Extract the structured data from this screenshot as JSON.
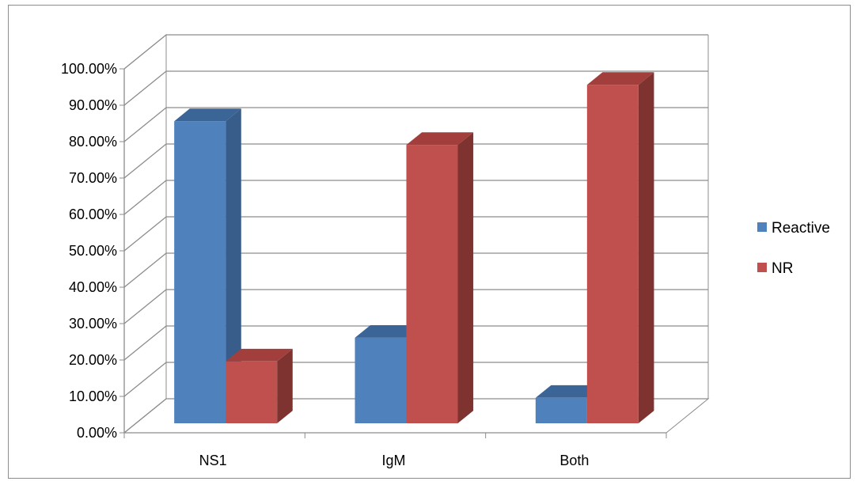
{
  "chart_data": {
    "type": "bar",
    "style": "3d-clustered-column",
    "categories": [
      "NS1",
      "IgM",
      "Both"
    ],
    "series": [
      {
        "name": "Reactive",
        "values": [
          83.0,
          23.5,
          7.0
        ],
        "color": "#4f81bd",
        "color_side": "#385d8a",
        "color_top": "#3b6497"
      },
      {
        "name": "NR",
        "values": [
          17.0,
          76.5,
          93.0
        ],
        "color": "#c0504d",
        "color_side": "#7f3331",
        "color_top": "#a23f3d"
      }
    ],
    "y_ticks": [
      "0.00%",
      "10.00%",
      "20.00%",
      "30.00%",
      "40.00%",
      "50.00%",
      "60.00%",
      "70.00%",
      "80.00%",
      "90.00%",
      "100.00%"
    ],
    "ylim": [
      0,
      100
    ],
    "title": "",
    "xlabel": "",
    "ylabel": "",
    "grid": true,
    "legend_position": "right"
  }
}
